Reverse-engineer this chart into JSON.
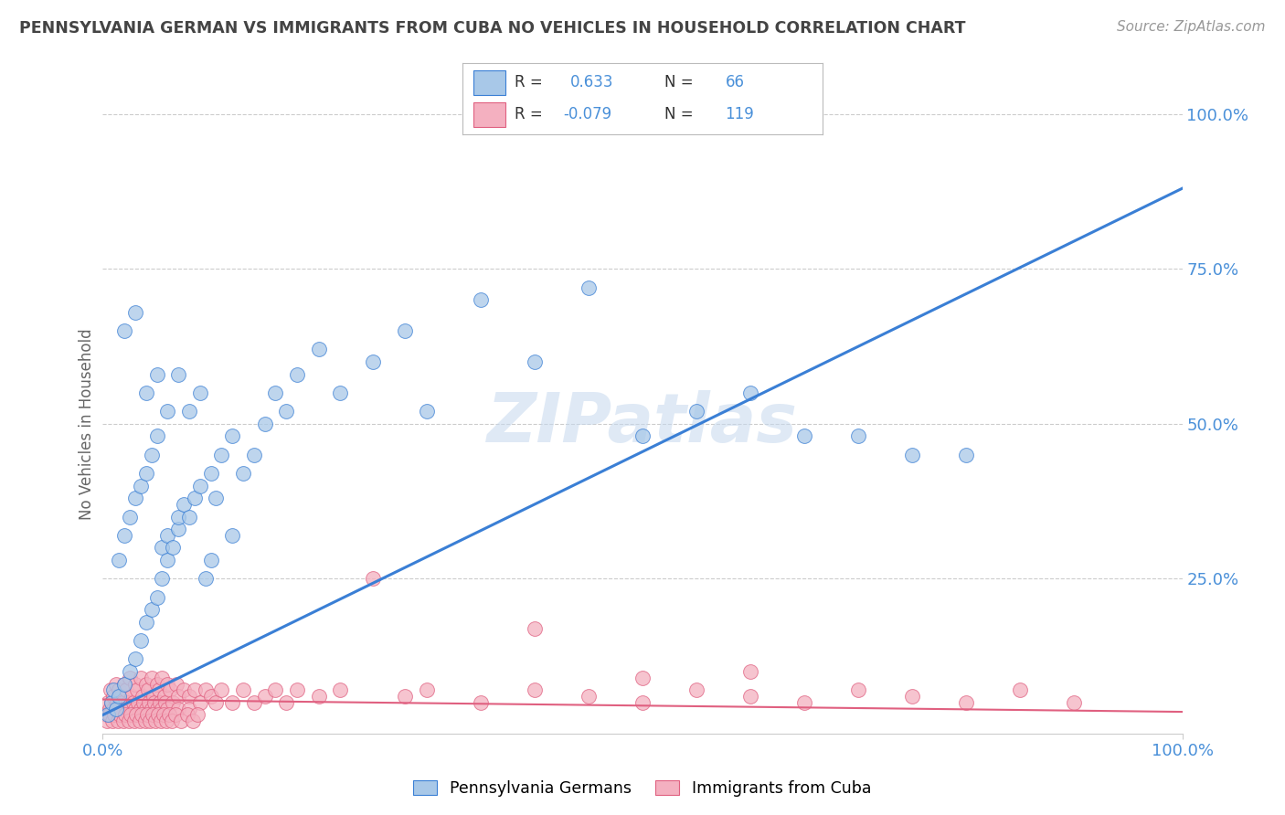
{
  "title": "PENNSYLVANIA GERMAN VS IMMIGRANTS FROM CUBA NO VEHICLES IN HOUSEHOLD CORRELATION CHART",
  "source": "Source: ZipAtlas.com",
  "ylabel": "No Vehicles in Household",
  "xlim": [
    0,
    100
  ],
  "ylim": [
    0,
    100
  ],
  "watermark": "ZIPatlas",
  "color_blue": "#a8c8e8",
  "color_pink": "#f4b0c0",
  "line_blue": "#3a7fd5",
  "line_pink": "#e06080",
  "bg_color": "#ffffff",
  "grid_color": "#cccccc",
  "title_color": "#444444",
  "axis_tick_color": "#4a90d9",
  "blue_line_x": [
    0,
    100
  ],
  "blue_line_y": [
    3.0,
    88.0
  ],
  "pink_line_x": [
    0,
    100
  ],
  "pink_line_y": [
    5.5,
    3.5
  ],
  "blue_scatter": [
    [
      0.5,
      3.0
    ],
    [
      0.8,
      5.0
    ],
    [
      1.0,
      7.0
    ],
    [
      1.2,
      4.0
    ],
    [
      1.5,
      6.0
    ],
    [
      1.5,
      28.0
    ],
    [
      2.0,
      8.0
    ],
    [
      2.0,
      32.0
    ],
    [
      2.5,
      10.0
    ],
    [
      2.5,
      35.0
    ],
    [
      3.0,
      12.0
    ],
    [
      3.0,
      38.0
    ],
    [
      3.5,
      15.0
    ],
    [
      3.5,
      40.0
    ],
    [
      4.0,
      18.0
    ],
    [
      4.0,
      42.0
    ],
    [
      4.5,
      20.0
    ],
    [
      4.5,
      45.0
    ],
    [
      5.0,
      22.0
    ],
    [
      5.0,
      48.0
    ],
    [
      5.5,
      25.0
    ],
    [
      5.5,
      30.0
    ],
    [
      6.0,
      28.0
    ],
    [
      6.0,
      32.0
    ],
    [
      6.5,
      30.0
    ],
    [
      7.0,
      33.0
    ],
    [
      7.0,
      35.0
    ],
    [
      7.5,
      37.0
    ],
    [
      8.0,
      35.0
    ],
    [
      8.5,
      38.0
    ],
    [
      9.0,
      40.0
    ],
    [
      9.5,
      25.0
    ],
    [
      10.0,
      42.0
    ],
    [
      10.5,
      38.0
    ],
    [
      11.0,
      45.0
    ],
    [
      12.0,
      48.0
    ],
    [
      13.0,
      42.0
    ],
    [
      14.0,
      45.0
    ],
    [
      15.0,
      50.0
    ],
    [
      16.0,
      55.0
    ],
    [
      17.0,
      52.0
    ],
    [
      18.0,
      58.0
    ],
    [
      20.0,
      62.0
    ],
    [
      22.0,
      55.0
    ],
    [
      25.0,
      60.0
    ],
    [
      28.0,
      65.0
    ],
    [
      30.0,
      52.0
    ],
    [
      35.0,
      70.0
    ],
    [
      40.0,
      60.0
    ],
    [
      45.0,
      72.0
    ],
    [
      50.0,
      48.0
    ],
    [
      55.0,
      52.0
    ],
    [
      60.0,
      55.0
    ],
    [
      65.0,
      48.0
    ],
    [
      70.0,
      48.0
    ],
    [
      75.0,
      45.0
    ],
    [
      80.0,
      45.0
    ],
    [
      2.0,
      65.0
    ],
    [
      3.0,
      68.0
    ],
    [
      4.0,
      55.0
    ],
    [
      5.0,
      58.0
    ],
    [
      6.0,
      52.0
    ],
    [
      7.0,
      58.0
    ],
    [
      8.0,
      52.0
    ],
    [
      9.0,
      55.0
    ],
    [
      10.0,
      28.0
    ],
    [
      12.0,
      32.0
    ]
  ],
  "pink_scatter": [
    [
      0.3,
      3.0
    ],
    [
      0.5,
      5.0
    ],
    [
      0.6,
      4.0
    ],
    [
      0.7,
      7.0
    ],
    [
      0.8,
      5.0
    ],
    [
      1.0,
      6.0
    ],
    [
      1.0,
      4.0
    ],
    [
      1.2,
      8.0
    ],
    [
      1.3,
      5.0
    ],
    [
      1.5,
      7.0
    ],
    [
      1.5,
      4.0
    ],
    [
      1.7,
      6.0
    ],
    [
      1.8,
      5.0
    ],
    [
      2.0,
      8.0
    ],
    [
      2.0,
      4.0
    ],
    [
      2.2,
      7.0
    ],
    [
      2.3,
      5.0
    ],
    [
      2.5,
      9.0
    ],
    [
      2.5,
      4.0
    ],
    [
      2.7,
      6.0
    ],
    [
      2.8,
      5.0
    ],
    [
      3.0,
      8.0
    ],
    [
      3.0,
      4.0
    ],
    [
      3.2,
      7.0
    ],
    [
      3.3,
      5.0
    ],
    [
      3.5,
      9.0
    ],
    [
      3.5,
      4.0
    ],
    [
      3.7,
      6.0
    ],
    [
      3.8,
      5.0
    ],
    [
      4.0,
      8.0
    ],
    [
      4.0,
      4.0
    ],
    [
      4.2,
      7.0
    ],
    [
      4.3,
      5.0
    ],
    [
      4.5,
      9.0
    ],
    [
      4.5,
      4.0
    ],
    [
      4.7,
      6.0
    ],
    [
      4.8,
      5.0
    ],
    [
      5.0,
      8.0
    ],
    [
      5.0,
      4.0
    ],
    [
      5.2,
      7.0
    ],
    [
      5.3,
      5.0
    ],
    [
      5.5,
      9.0
    ],
    [
      5.5,
      4.0
    ],
    [
      5.7,
      6.0
    ],
    [
      5.8,
      5.0
    ],
    [
      6.0,
      8.0
    ],
    [
      6.0,
      4.0
    ],
    [
      6.2,
      7.0
    ],
    [
      6.5,
      5.0
    ],
    [
      6.8,
      8.0
    ],
    [
      7.0,
      6.0
    ],
    [
      7.0,
      4.0
    ],
    [
      7.5,
      7.0
    ],
    [
      8.0,
      6.0
    ],
    [
      8.0,
      4.0
    ],
    [
      8.5,
      7.0
    ],
    [
      9.0,
      5.0
    ],
    [
      9.5,
      7.0
    ],
    [
      10.0,
      6.0
    ],
    [
      10.5,
      5.0
    ],
    [
      11.0,
      7.0
    ],
    [
      12.0,
      5.0
    ],
    [
      13.0,
      7.0
    ],
    [
      14.0,
      5.0
    ],
    [
      15.0,
      6.0
    ],
    [
      16.0,
      7.0
    ],
    [
      17.0,
      5.0
    ],
    [
      18.0,
      7.0
    ],
    [
      20.0,
      6.0
    ],
    [
      22.0,
      7.0
    ],
    [
      25.0,
      25.0
    ],
    [
      28.0,
      6.0
    ],
    [
      30.0,
      7.0
    ],
    [
      35.0,
      5.0
    ],
    [
      40.0,
      7.0
    ],
    [
      45.0,
      6.0
    ],
    [
      50.0,
      5.0
    ],
    [
      55.0,
      7.0
    ],
    [
      60.0,
      6.0
    ],
    [
      65.0,
      5.0
    ],
    [
      70.0,
      7.0
    ],
    [
      75.0,
      6.0
    ],
    [
      80.0,
      5.0
    ],
    [
      85.0,
      7.0
    ],
    [
      90.0,
      5.0
    ],
    [
      0.4,
      2.0
    ],
    [
      0.6,
      3.0
    ],
    [
      0.9,
      2.0
    ],
    [
      1.1,
      3.0
    ],
    [
      1.4,
      2.0
    ],
    [
      1.6,
      3.0
    ],
    [
      1.9,
      2.0
    ],
    [
      2.1,
      3.0
    ],
    [
      2.4,
      2.0
    ],
    [
      2.6,
      3.0
    ],
    [
      2.9,
      2.0
    ],
    [
      3.1,
      3.0
    ],
    [
      3.4,
      2.0
    ],
    [
      3.6,
      3.0
    ],
    [
      3.9,
      2.0
    ],
    [
      4.1,
      3.0
    ],
    [
      4.4,
      2.0
    ],
    [
      4.6,
      3.0
    ],
    [
      4.9,
      2.0
    ],
    [
      5.1,
      3.0
    ],
    [
      5.4,
      2.0
    ],
    [
      5.6,
      3.0
    ],
    [
      5.9,
      2.0
    ],
    [
      6.1,
      3.0
    ],
    [
      6.4,
      2.0
    ],
    [
      6.7,
      3.0
    ],
    [
      7.2,
      2.0
    ],
    [
      7.8,
      3.0
    ],
    [
      8.3,
      2.0
    ],
    [
      8.8,
      3.0
    ],
    [
      40.0,
      17.0
    ],
    [
      50.0,
      9.0
    ],
    [
      60.0,
      10.0
    ]
  ]
}
